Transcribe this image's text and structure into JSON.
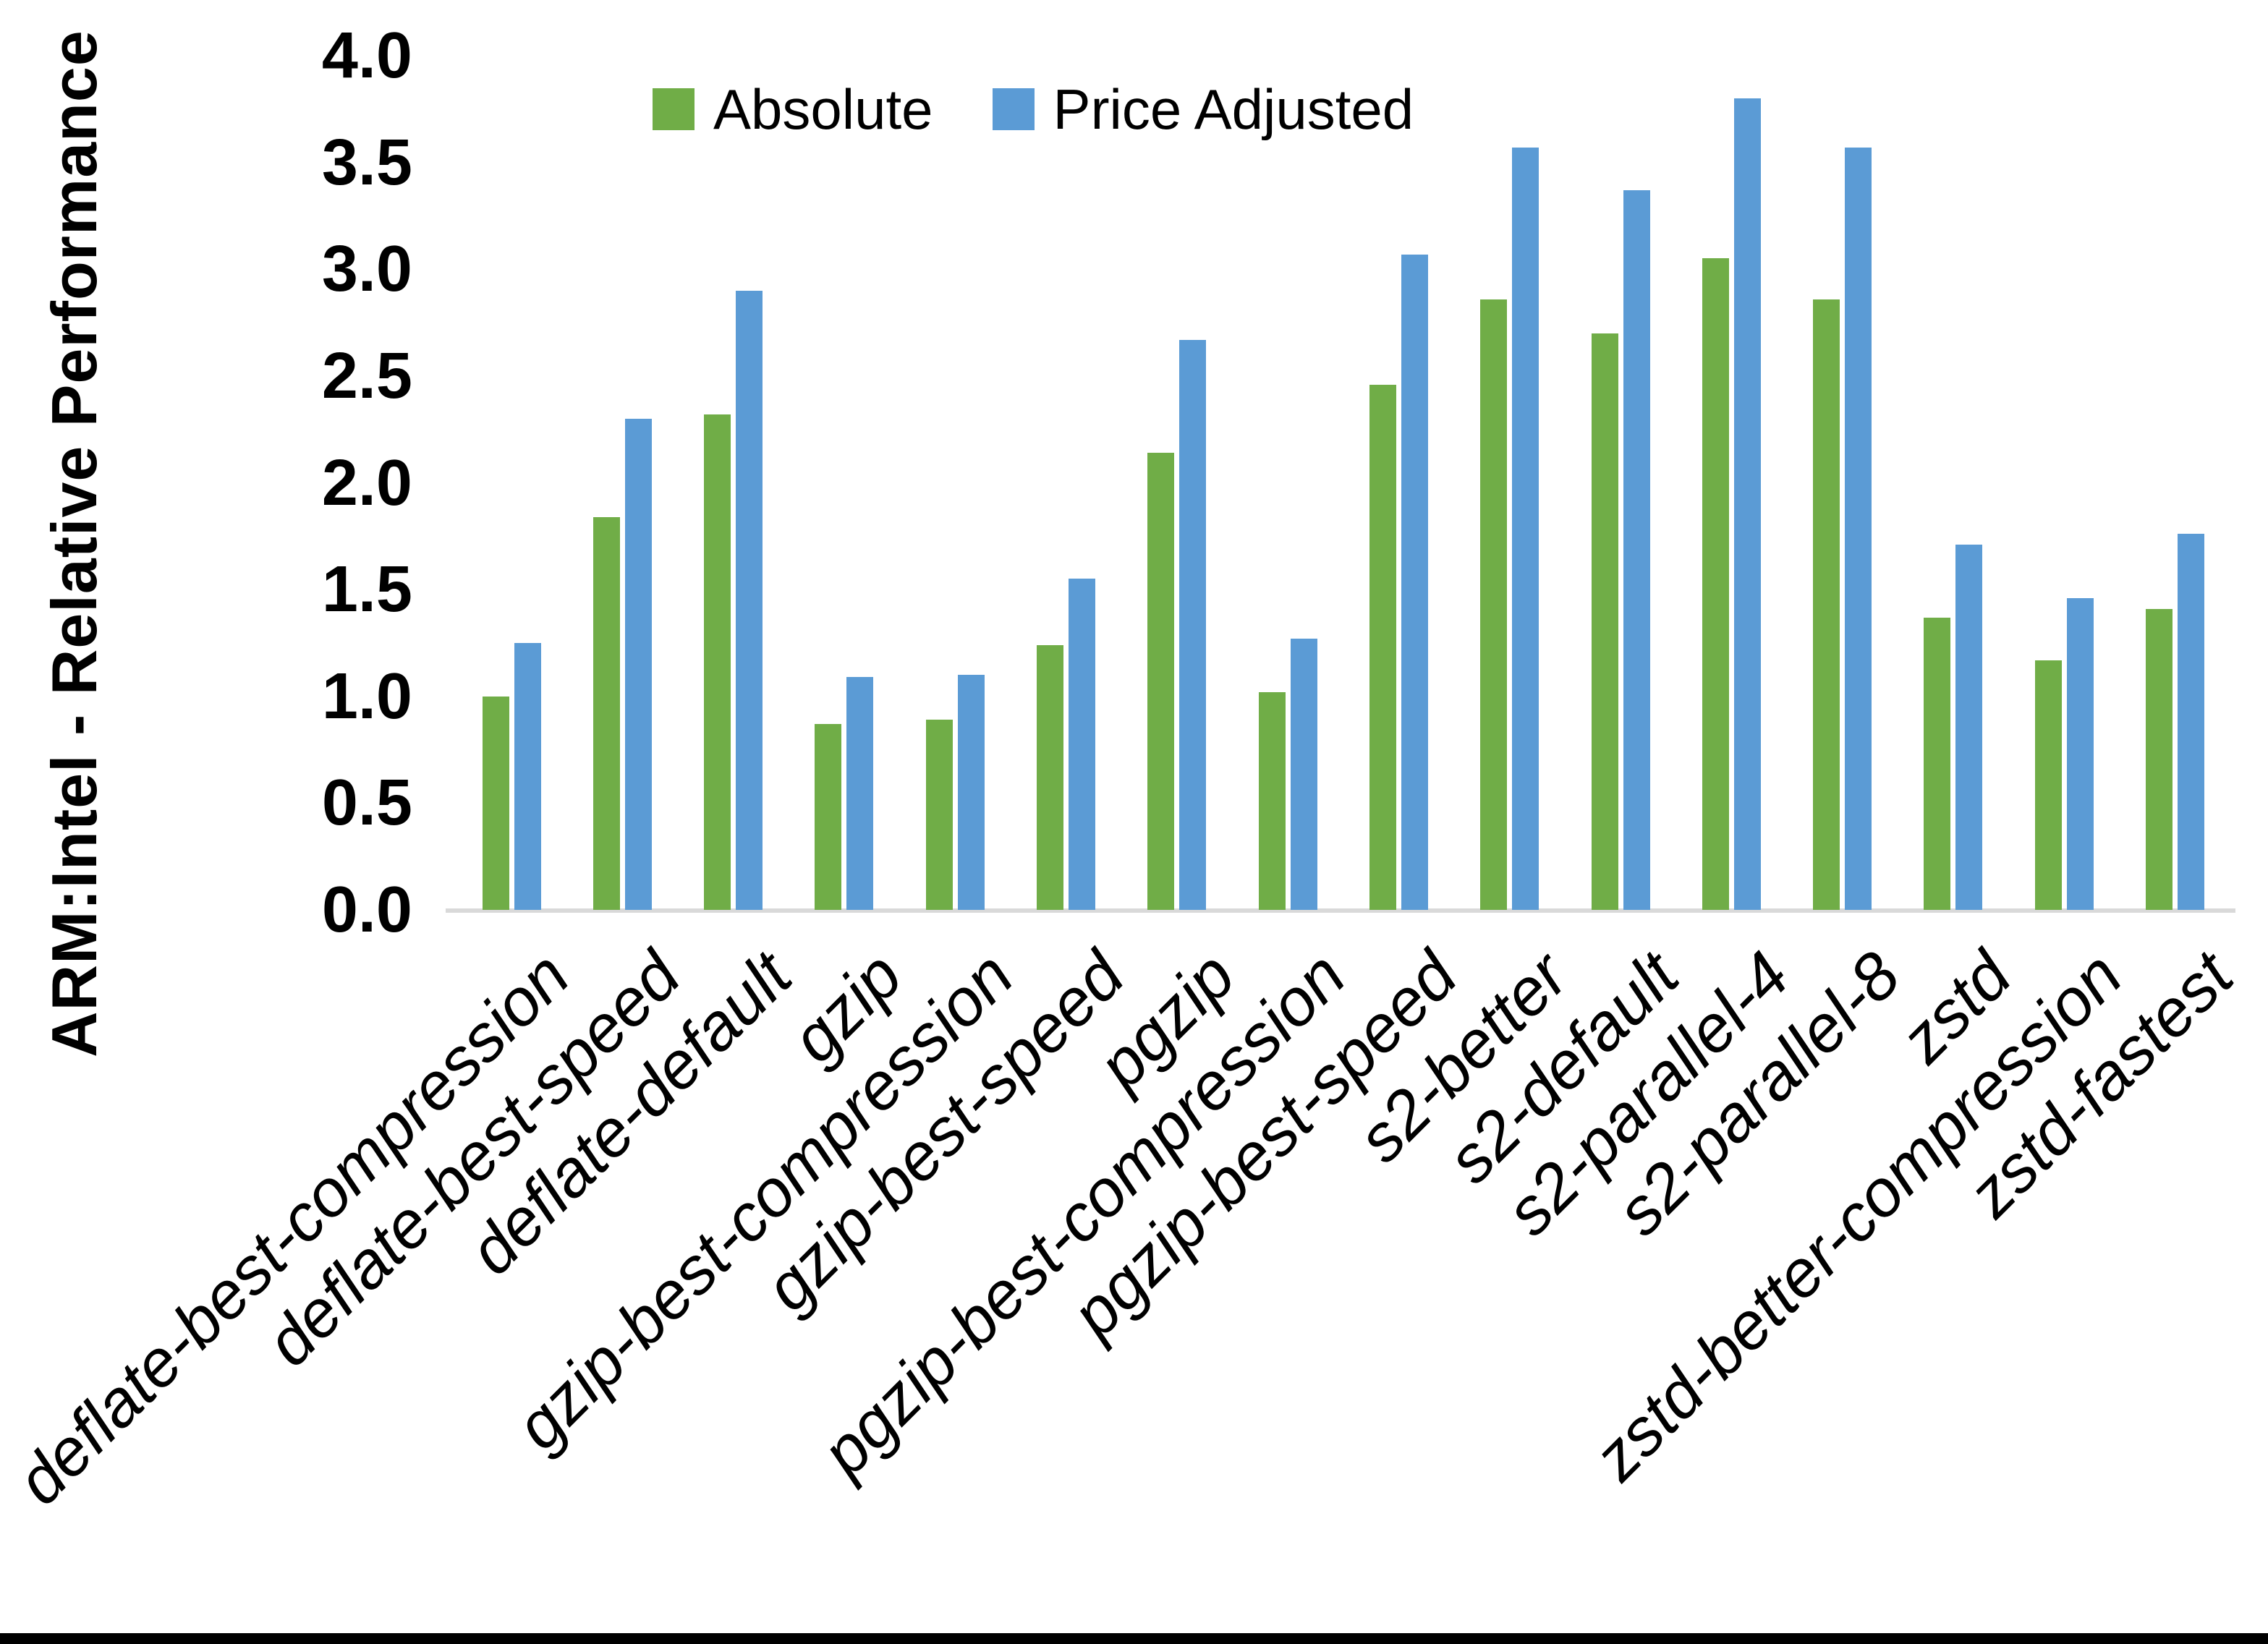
{
  "chart_data": {
    "type": "bar",
    "title": "",
    "xlabel": "",
    "ylabel": "ARM:Intel - Relative Performance",
    "ylim": [
      0.0,
      4.0
    ],
    "ytick_step": 0.5,
    "ytick_labels": [
      "0.0",
      "0.5",
      "1.0",
      "1.5",
      "2.0",
      "2.5",
      "3.0",
      "3.5",
      "4.0"
    ],
    "grid": false,
    "legend_position": "top-center",
    "categories": [
      "deflate-best-compression",
      "deflate-best-speed",
      "deflate-default",
      "gzip",
      "gzip-best-compression",
      "gzip-best-speed",
      "pgzip",
      "pgzip-best-compression",
      "pgzip-best-speed",
      "s2-better",
      "s2-default",
      "s2-parallel-4",
      "s2-parallel-8",
      "zstd",
      "zstd-better-compression",
      "zstd-fastest"
    ],
    "series": [
      {
        "name": "Absolute",
        "color": "#70AD47",
        "values": [
          1.0,
          1.84,
          2.32,
          0.87,
          0.89,
          1.24,
          2.14,
          1.02,
          2.46,
          2.86,
          2.7,
          3.05,
          2.86,
          1.37,
          1.17,
          1.41
        ]
      },
      {
        "name": "Price Adjusted",
        "color": "#5B9BD5",
        "values": [
          1.25,
          2.3,
          2.9,
          1.09,
          1.1,
          1.55,
          2.67,
          1.27,
          3.07,
          3.57,
          3.37,
          3.8,
          3.57,
          1.71,
          1.46,
          1.76
        ]
      }
    ],
    "colors": {
      "axis_line": "#D9D9D9",
      "text": "#000000",
      "background": "#FFFFFF",
      "bottom_border": "#000000"
    }
  }
}
